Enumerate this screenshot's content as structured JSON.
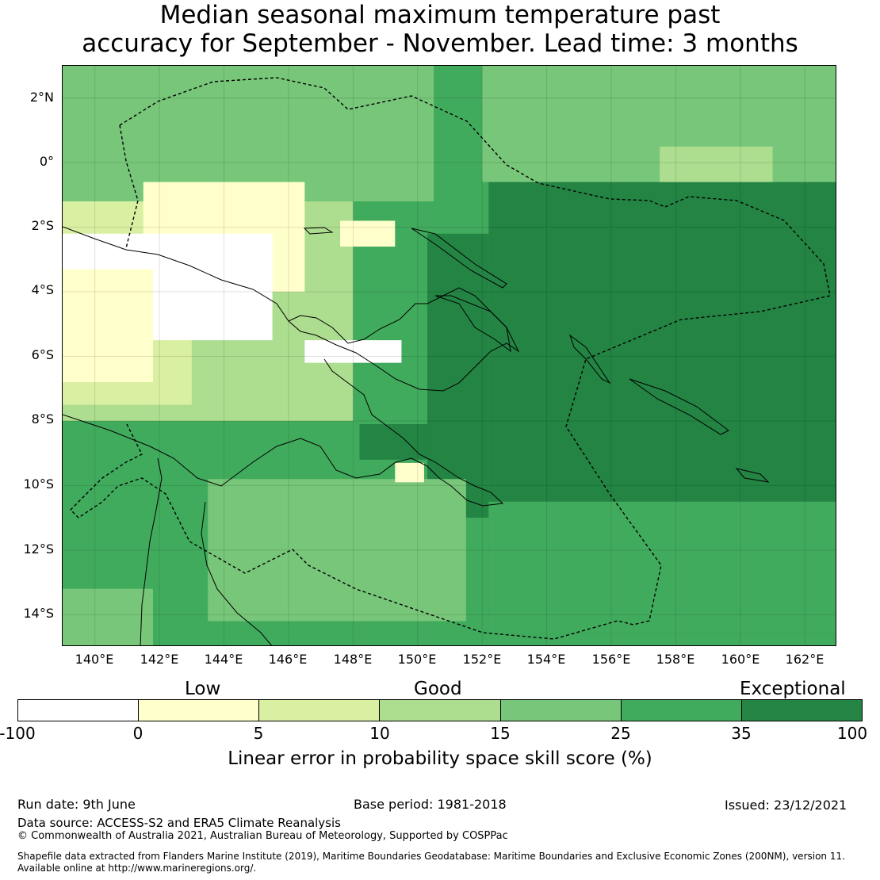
{
  "title_line1": "Median seasonal maximum temperature past",
  "title_line2": "accuracy for September - November. Lead time: 3 months",
  "map": {
    "lat_range": [
      -15,
      3
    ],
    "lon_range": [
      139,
      163
    ],
    "lat_ticks": [
      {
        "lat": 2,
        "label": "2°N"
      },
      {
        "lat": 0,
        "label": "0°"
      },
      {
        "lat": -2,
        "label": "2°S"
      },
      {
        "lat": -4,
        "label": "4°S"
      },
      {
        "lat": -6,
        "label": "6°S"
      },
      {
        "lat": -8,
        "label": "8°S"
      },
      {
        "lat": -10,
        "label": "10°S"
      },
      {
        "lat": -12,
        "label": "12°S"
      },
      {
        "lat": -14,
        "label": "14°S"
      }
    ],
    "lon_ticks": [
      {
        "lon": 140,
        "label": "140°E"
      },
      {
        "lon": 142,
        "label": "142°E"
      },
      {
        "lon": 144,
        "label": "144°E"
      },
      {
        "lon": 146,
        "label": "146°E"
      },
      {
        "lon": 148,
        "label": "148°E"
      },
      {
        "lon": 150,
        "label": "150°E"
      },
      {
        "lon": 152,
        "label": "152°E"
      },
      {
        "lon": 154,
        "label": "154°E"
      },
      {
        "lon": 156,
        "label": "156°E"
      },
      {
        "lon": 158,
        "label": "158°E"
      },
      {
        "lon": 160,
        "label": "160°E"
      },
      {
        "lon": 162,
        "label": "162°E"
      }
    ],
    "grid": true,
    "colors": {
      "land_outline": "#000000",
      "eez_boundary": "#000000",
      "background_skill": "#41a85a"
    }
  },
  "legend": {
    "categories": [
      "Low",
      "Good",
      "Exceptional"
    ],
    "bins": [
      {
        "from": -100,
        "to": 0,
        "color": "#ffffff"
      },
      {
        "from": 0,
        "to": 5,
        "color": "#ffffcc"
      },
      {
        "from": 5,
        "to": 10,
        "color": "#d9f0a3"
      },
      {
        "from": 10,
        "to": 15,
        "color": "#addd8e"
      },
      {
        "from": 15,
        "to": 25,
        "color": "#78c679"
      },
      {
        "from": 25,
        "to": 35,
        "color": "#41ab5d"
      },
      {
        "from": 35,
        "to": 100,
        "color": "#238443"
      }
    ],
    "tick_labels": [
      "-100",
      "0",
      "5",
      "10",
      "15",
      "25",
      "35",
      "100"
    ],
    "label": "Linear error in probability space skill score (%)"
  },
  "footer": {
    "run_date": "Run date: 9th June",
    "base_period": "Base period: 1981-2018",
    "issued": "Issued: 23/12/2021",
    "data_source": "Data source: ACCESS-S2 and ERA5 Climate Reanalysis",
    "copyright": "© Commonwealth of Australia 2021, Australian Bureau of Meteorology, Supported by COSPPac",
    "shapefile_line1": "Shapefile data extracted from Flanders Marine Institute (2019), Maritime Boundaries Geodatabase: Maritime Boundaries and Exclusive Economic Zones (200NM), version 11.",
    "shapefile_line2": "Available online at http://www.marineregions.org/."
  }
}
